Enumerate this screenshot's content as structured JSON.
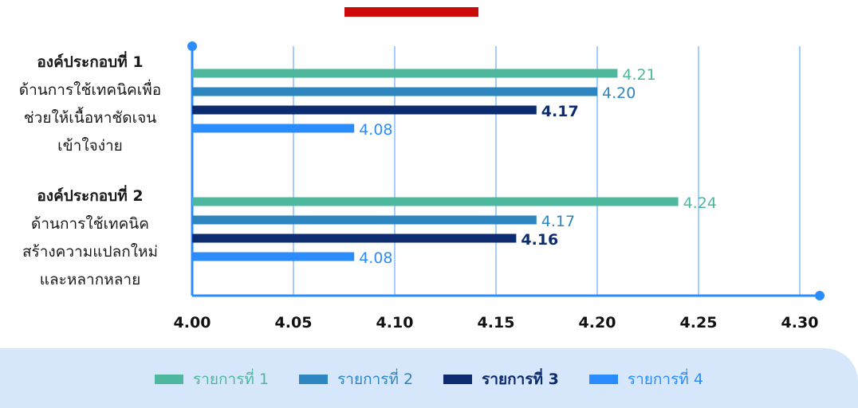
{
  "colors": {
    "accent_red": "#cc0a0a",
    "series": [
      "#4db89e",
      "#2e86c1",
      "#0d2c70",
      "#2b8cff"
    ],
    "axis": "#2b8cff",
    "legend_bg": "#d6e6fb"
  },
  "chart_data": {
    "type": "bar",
    "orientation": "horizontal",
    "categories": [
      {
        "lines": [
          "องค์ประกอบที่ 1",
          "ด้านการใช้เทคนิคเพื่อ",
          "ช่วยให้เนื้อหาชัดเจน",
          "เข้าใจง่าย"
        ]
      },
      {
        "lines": [
          "องค์ประกอบที่ 2",
          "ด้านการใช้เทคนิค",
          "สร้างความแปลกใหม่",
          "และหลากหลาย"
        ]
      }
    ],
    "series": [
      {
        "name": "รายการที่ 1",
        "values": [
          4.21,
          4.24
        ]
      },
      {
        "name": "รายการที่ 2",
        "values": [
          4.2,
          4.17
        ]
      },
      {
        "name": "รายการที่ 3",
        "values": [
          4.17,
          4.16
        ]
      },
      {
        "name": "รายการที่ 4",
        "values": [
          4.08,
          4.08
        ]
      }
    ],
    "value_labels": [
      [
        "4.21",
        "4.24"
      ],
      [
        "4.20",
        "4.17"
      ],
      [
        "4.17",
        "4.16"
      ],
      [
        "4.08",
        "4.08"
      ]
    ],
    "xlim": [
      4.0,
      4.3
    ],
    "xticks": [
      "4.00",
      "4.05",
      "4.10",
      "4.15",
      "4.20",
      "4.25",
      "4.30"
    ],
    "grid": true,
    "legend_position": "bottom"
  }
}
